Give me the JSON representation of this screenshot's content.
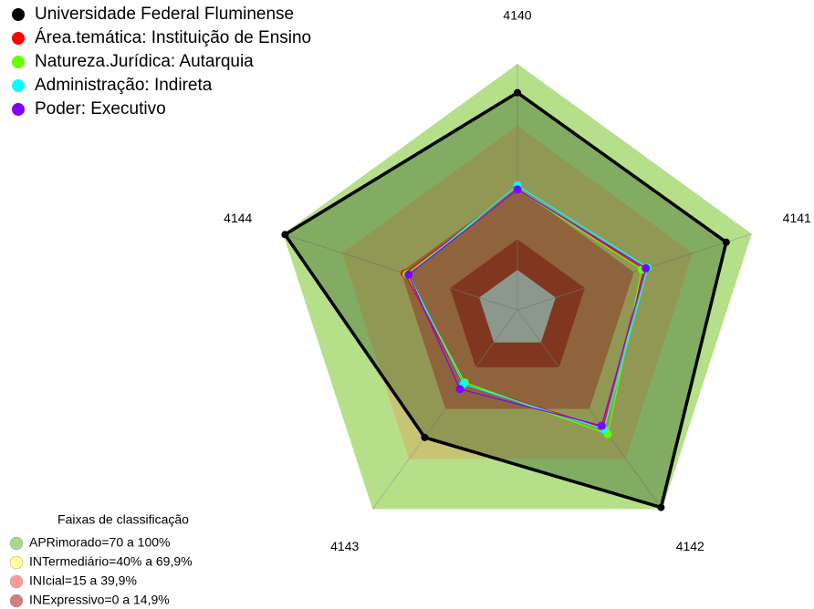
{
  "chart_data": {
    "type": "radar",
    "categories": [
      "4140",
      "4141",
      "4142",
      "4143",
      "4144"
    ],
    "rlim": [
      0,
      100
    ],
    "series": [
      {
        "name": "Universidade Federal Fluminense",
        "color": "#000000",
        "values": [
          86,
          87,
          99,
          57,
          99
        ]
      },
      {
        "name": "Área.temática: Instituição de Ensino",
        "color": "#ff0000",
        "values": [
          39,
          45,
          51,
          25,
          38
        ]
      },
      {
        "name": "Natureza.Jurídica: Autarquia",
        "color": "#66ff00",
        "values": [
          39,
          44,
          55,
          24,
          37
        ]
      },
      {
        "name": "Administração: Indireta",
        "color": "#00ffff",
        "values": [
          41,
          47,
          52,
          25,
          36
        ]
      },
      {
        "name": "Poder: Executivo",
        "color": "#8000ff",
        "values": [
          39,
          46,
          50,
          28,
          36
        ]
      }
    ],
    "bands_title": "Faixas de classificação",
    "bands": [
      {
        "label": "APRimorado=70 a 100%",
        "from": 70,
        "to": 100,
        "color": "#b6df8a",
        "legend_color": "#a8d98a"
      },
      {
        "label": "INTermediário=40% a 69,9%",
        "from": 40,
        "to": 69.9,
        "color": "#c9c473",
        "legend_color": "#ffff99"
      },
      {
        "label": "INIcial=15 a 39,9%",
        "from": 15,
        "to": 39.9,
        "color": "#c67a52",
        "legend_color": "#ff9999"
      },
      {
        "label": "INExpressivo=0 a 14,9%",
        "from": 0,
        "to": 14.9,
        "color": "#b23c2c",
        "legend_color": "#d08080"
      }
    ]
  }
}
